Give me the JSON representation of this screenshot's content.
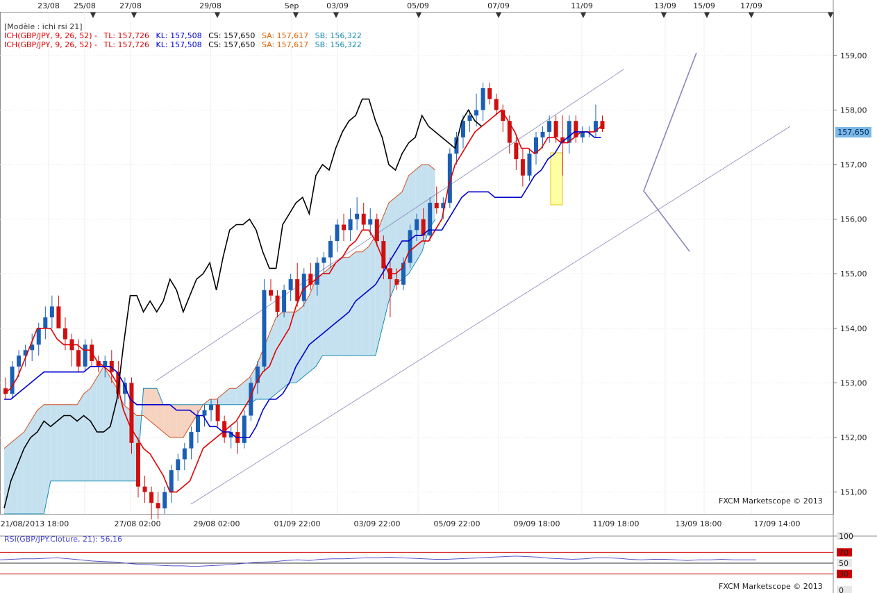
{
  "legend": {
    "model": "[Modèle : ichi rsi 21]",
    "lines": [
      {
        "ich": "ICH(GBP/JPY, 9, 26, 52) -",
        "tl": "TL: 157,726",
        "kl": "KL: 157,508",
        "cs": "CS: 157,650",
        "sa": "SA: 157,617",
        "sb": "SB: 156,322"
      },
      {
        "ich": "ICH(GBP/JPY, 9, 26, 52) -",
        "tl": "TL: 157,726",
        "kl": "KL: 157,508",
        "cs": "CS: 157,650",
        "sa": "SA: 157,617",
        "sb": "SB: 156,322"
      }
    ]
  },
  "credit": "FXCM Marketscope © 2013",
  "price_badge": "157,650",
  "rsi_label": "RSI(GBP/JPY.Cloture, 21): 56,16",
  "colors": {
    "bull": "#1a5fb4",
    "bear": "#d01010",
    "tenkan": "#e00000",
    "kijun": "#0000cc",
    "chikou": "#000000",
    "cloud_bull": "#c5e1f0",
    "cloud_bear": "#f6d2c0",
    "span_a": "#d05020",
    "span_b": "#1a8ab0",
    "rsi": "#5555cc"
  },
  "chart_data": {
    "type": "candlestick",
    "instrument": "GBP/JPY",
    "y_ticks": [
      "159,00",
      "158,00",
      "157,00",
      "156,00",
      "155,00",
      "154,00",
      "153,00",
      "152,00",
      "151,00"
    ],
    "ylim": [
      150.6,
      159.8
    ],
    "top_date_labels": [
      "23/08",
      "25/08",
      "27/08",
      "29/08",
      "Sep",
      "03/09",
      "05/09",
      "07/09",
      "11/09",
      "13/09",
      "15/09",
      "17/09"
    ],
    "bottom_date_labels": [
      "21/08/2013 18:00",
      "27/08 02:00",
      "29/08 02:00",
      "01/09 22:00",
      "03/09 22:00",
      "05/09 22:00",
      "09/09 18:00",
      "11/09 18:00",
      "13/09 18:00",
      "17/09 14:00"
    ],
    "candles": [
      [
        152.9,
        153.1,
        152.7,
        152.8
      ],
      [
        152.8,
        153.4,
        152.7,
        153.3
      ],
      [
        153.3,
        153.6,
        153.1,
        153.5
      ],
      [
        153.5,
        153.7,
        153.3,
        153.6
      ],
      [
        153.6,
        153.9,
        153.4,
        153.7
      ],
      [
        153.7,
        154.1,
        153.5,
        154.0
      ],
      [
        154.0,
        154.4,
        153.8,
        154.2
      ],
      [
        154.2,
        154.6,
        154.0,
        154.4
      ],
      [
        154.4,
        154.6,
        154.0,
        154.0
      ],
      [
        154.0,
        154.2,
        153.6,
        153.8
      ],
      [
        153.8,
        153.9,
        153.3,
        153.6
      ],
      [
        153.6,
        153.8,
        153.2,
        153.3
      ],
      [
        153.3,
        153.8,
        153.2,
        153.7
      ],
      [
        153.7,
        153.8,
        153.3,
        153.4
      ],
      [
        153.4,
        153.5,
        153.2,
        153.3
      ],
      [
        153.3,
        153.5,
        153.1,
        153.4
      ],
      [
        153.4,
        153.6,
        153.0,
        153.2
      ],
      [
        153.2,
        153.4,
        152.7,
        152.8
      ],
      [
        152.8,
        153.1,
        152.6,
        153.0
      ],
      [
        153.0,
        153.1,
        151.7,
        151.9
      ],
      [
        151.9,
        152.0,
        150.9,
        151.1
      ],
      [
        151.1,
        151.3,
        150.8,
        151.0
      ],
      [
        151.0,
        151.1,
        150.5,
        150.8
      ],
      [
        150.8,
        151.0,
        150.5,
        150.7
      ],
      [
        150.7,
        151.1,
        150.6,
        151.0
      ],
      [
        151.0,
        151.5,
        150.8,
        151.4
      ],
      [
        151.4,
        151.7,
        151.2,
        151.6
      ],
      [
        151.6,
        151.9,
        151.4,
        151.8
      ],
      [
        151.8,
        152.2,
        151.6,
        152.1
      ],
      [
        152.1,
        152.5,
        151.9,
        152.4
      ],
      [
        152.4,
        152.6,
        152.2,
        152.5
      ],
      [
        152.5,
        152.7,
        152.3,
        152.6
      ],
      [
        152.6,
        152.7,
        152.2,
        152.3
      ],
      [
        152.3,
        152.4,
        151.9,
        152.0
      ],
      [
        152.0,
        152.2,
        151.8,
        152.1
      ],
      [
        152.1,
        152.3,
        151.7,
        151.9
      ],
      [
        151.9,
        152.5,
        151.8,
        152.4
      ],
      [
        152.4,
        153.1,
        152.3,
        153.0
      ],
      [
        153.0,
        153.4,
        152.8,
        153.3
      ],
      [
        153.3,
        154.9,
        153.2,
        154.7
      ],
      [
        154.7,
        154.9,
        154.5,
        154.6
      ],
      [
        154.6,
        154.7,
        154.2,
        154.3
      ],
      [
        154.3,
        154.8,
        154.2,
        154.7
      ],
      [
        154.7,
        155.0,
        154.5,
        154.9
      ],
      [
        154.9,
        155.2,
        154.4,
        154.5
      ],
      [
        154.5,
        155.1,
        154.4,
        155.0
      ],
      [
        155.0,
        155.2,
        154.7,
        154.8
      ],
      [
        154.8,
        155.3,
        154.6,
        155.2
      ],
      [
        155.2,
        155.4,
        155.0,
        155.3
      ],
      [
        155.3,
        155.7,
        155.1,
        155.6
      ],
      [
        155.6,
        156.0,
        155.4,
        155.9
      ],
      [
        155.9,
        156.1,
        155.6,
        155.8
      ],
      [
        155.8,
        156.2,
        155.6,
        156.0
      ],
      [
        156.0,
        156.4,
        155.8,
        156.1
      ],
      [
        156.1,
        156.3,
        155.8,
        155.9
      ],
      [
        155.9,
        156.2,
        155.7,
        156.0
      ],
      [
        156.0,
        156.1,
        155.5,
        155.6
      ],
      [
        155.6,
        155.7,
        154.9,
        155.1
      ],
      [
        155.1,
        155.3,
        154.2,
        154.9
      ],
      [
        154.9,
        155.1,
        154.7,
        154.8
      ],
      [
        154.8,
        155.3,
        154.7,
        155.2
      ],
      [
        155.2,
        155.9,
        155.1,
        155.8
      ],
      [
        155.8,
        156.1,
        155.6,
        156.0
      ],
      [
        156.0,
        156.2,
        155.6,
        155.7
      ],
      [
        155.7,
        156.4,
        155.6,
        156.3
      ],
      [
        156.3,
        156.6,
        156.1,
        156.2
      ],
      [
        156.2,
        156.4,
        156.0,
        156.3
      ],
      [
        156.3,
        157.3,
        156.2,
        157.2
      ],
      [
        157.2,
        157.6,
        157.0,
        157.5
      ],
      [
        157.5,
        157.9,
        157.3,
        157.8
      ],
      [
        157.8,
        158.0,
        157.6,
        157.9
      ],
      [
        157.9,
        158.3,
        157.7,
        158.0
      ],
      [
        158.0,
        158.5,
        157.8,
        158.4
      ],
      [
        158.4,
        158.5,
        158.1,
        158.2
      ],
      [
        158.2,
        158.3,
        157.9,
        158.0
      ],
      [
        158.0,
        158.1,
        157.6,
        157.8
      ],
      [
        157.8,
        157.9,
        157.2,
        157.4
      ],
      [
        157.4,
        157.5,
        156.9,
        157.1
      ],
      [
        157.1,
        157.3,
        156.6,
        156.8
      ],
      [
        156.8,
        157.3,
        156.7,
        157.2
      ],
      [
        157.2,
        157.6,
        157.0,
        157.5
      ],
      [
        157.5,
        157.7,
        157.3,
        157.6
      ],
      [
        157.6,
        157.9,
        157.4,
        157.8
      ],
      [
        157.8,
        157.9,
        157.4,
        157.5
      ],
      [
        157.5,
        157.9,
        156.8,
        157.4
      ],
      [
        157.4,
        157.9,
        157.2,
        157.8
      ],
      [
        157.8,
        157.9,
        157.4,
        157.5
      ],
      [
        157.5,
        157.7,
        157.4,
        157.6
      ],
      [
        157.6,
        157.7,
        157.5,
        157.6
      ],
      [
        157.6,
        158.1,
        157.5,
        157.8
      ],
      [
        157.8,
        157.9,
        157.6,
        157.65
      ]
    ],
    "tenkan": [
      152.8,
      152.9,
      153.1,
      153.4,
      153.7,
      154.0,
      154.0,
      154.0,
      153.8,
      153.7,
      153.7,
      153.7,
      153.6,
      153.6,
      153.4,
      153.3,
      153.2,
      153.0,
      152.5,
      152.2,
      152.0,
      151.8,
      151.7,
      151.5,
      151.3,
      151.0,
      151.0,
      151.1,
      151.2,
      151.5,
      151.8,
      151.9,
      152.0,
      152.1,
      152.2,
      152.3,
      152.5,
      152.7,
      153.0,
      153.2,
      153.3,
      153.6,
      153.8,
      154.0,
      154.4,
      154.7,
      154.8,
      154.9,
      155.0,
      155.0,
      155.2,
      155.3,
      155.5,
      155.6,
      155.8,
      155.8,
      155.6,
      155.3,
      155.0,
      155.0,
      155.1,
      155.4,
      155.5,
      155.6,
      155.6,
      155.8,
      156.0,
      156.6,
      157.0,
      157.2,
      157.4,
      157.6,
      157.7,
      157.8,
      157.9,
      158.0,
      157.8,
      157.6,
      157.3,
      157.3,
      157.2,
      157.3,
      157.5,
      157.5,
      157.4,
      157.4,
      157.5,
      157.6,
      157.6,
      157.6,
      157.7
    ],
    "kijun": [
      152.7,
      152.7,
      152.8,
      152.9,
      153.0,
      153.1,
      153.2,
      153.2,
      153.2,
      153.2,
      153.2,
      153.2,
      153.2,
      153.3,
      153.3,
      153.3,
      153.3,
      153.2,
      153.0,
      152.7,
      152.6,
      152.6,
      152.6,
      152.6,
      152.6,
      152.6,
      152.5,
      152.5,
      152.5,
      152.4,
      152.4,
      152.2,
      152.2,
      152.1,
      152.1,
      152.0,
      152.0,
      152.0,
      152.2,
      152.5,
      152.7,
      152.7,
      152.8,
      153.0,
      153.3,
      153.5,
      153.7,
      153.8,
      153.9,
      154.0,
      154.1,
      154.2,
      154.3,
      154.5,
      154.6,
      154.7,
      154.8,
      155.0,
      155.2,
      155.4,
      155.6,
      155.6,
      155.7,
      155.7,
      155.8,
      155.8,
      155.8,
      156.0,
      156.2,
      156.4,
      156.5,
      156.5,
      156.5,
      156.5,
      156.4,
      156.4,
      156.4,
      156.4,
      156.4,
      156.6,
      156.8,
      156.9,
      157.1,
      157.2,
      157.4,
      157.5,
      157.6,
      157.6,
      157.6,
      157.5,
      157.5
    ],
    "chikou": [
      150.7,
      151.2,
      151.5,
      151.8,
      152.0,
      152.1,
      152.3,
      152.2,
      152.3,
      152.4,
      152.4,
      152.3,
      152.4,
      152.3,
      152.1,
      152.1,
      152.2,
      152.7,
      153.7,
      154.6,
      154.6,
      154.3,
      154.5,
      154.3,
      154.5,
      154.9,
      154.7,
      154.3,
      154.6,
      154.9,
      155.0,
      155.2,
      154.7,
      155.3,
      155.8,
      155.9,
      155.9,
      156.0,
      155.8,
      155.4,
      155.1,
      155.1,
      155.9,
      156.1,
      156.3,
      156.4,
      156.1,
      156.8,
      157.0,
      156.9,
      157.3,
      157.6,
      157.8,
      157.9,
      158.2,
      158.2,
      157.8,
      157.5,
      157.0,
      156.9,
      157.2,
      157.4,
      157.5,
      157.9,
      157.7,
      157.6,
      157.5,
      157.4,
      157.3,
      157.8,
      158.0,
      157.8,
      157.7
    ],
    "span_a": [
      151.8,
      151.9,
      152.0,
      152.1,
      152.3,
      152.5,
      152.6,
      152.6,
      152.6,
      152.6,
      152.6,
      152.6,
      152.8,
      152.9,
      153.1,
      153.3,
      153.1,
      152.9,
      152.6,
      152.5,
      152.4,
      152.4,
      152.3,
      152.2,
      152.1,
      152.0,
      152.0,
      152.0,
      152.2,
      152.4,
      152.6,
      152.7,
      152.7,
      152.8,
      152.9,
      152.9,
      153.0,
      153.1,
      153.3,
      153.6,
      153.9,
      154.2,
      154.3,
      154.3,
      154.3,
      154.4,
      154.6,
      154.9,
      155.0,
      155.1,
      155.2,
      155.3,
      155.3,
      155.4,
      155.4,
      155.5,
      155.7,
      156.0,
      156.3,
      156.4,
      156.5,
      156.8,
      156.9,
      157.0,
      157.0,
      156.9,
      156.9
    ],
    "span_b": [
      150.6,
      150.6,
      150.6,
      150.6,
      150.6,
      150.6,
      150.6,
      151.2,
      151.2,
      151.2,
      151.2,
      151.2,
      151.2,
      151.2,
      151.2,
      151.2,
      151.2,
      151.2,
      151.2,
      151.2,
      151.2,
      152.9,
      152.9,
      152.9,
      152.6,
      152.6,
      152.6,
      152.6,
      152.6,
      152.6,
      152.6,
      152.6,
      152.6,
      152.6,
      152.6,
      152.6,
      152.6,
      152.6,
      152.7,
      152.7,
      152.7,
      152.8,
      152.9,
      153.0,
      153.0,
      153.1,
      153.2,
      153.3,
      153.5,
      153.5,
      153.5,
      153.5,
      153.5,
      153.5,
      153.5,
      153.5,
      153.5,
      154.0,
      154.5,
      154.8,
      154.9,
      155.0,
      155.2,
      155.4,
      155.8,
      156.0
    ],
    "rsi": [
      56,
      57,
      58,
      58,
      59,
      60,
      58,
      56,
      54,
      53,
      52,
      50,
      48,
      47,
      46,
      45,
      45,
      44,
      45,
      46,
      47,
      49,
      51,
      52,
      53,
      55,
      56,
      55,
      57,
      58,
      58,
      59,
      60,
      60,
      61,
      60,
      59,
      58,
      57,
      57,
      58,
      59,
      60,
      61,
      62,
      63,
      62,
      61,
      59,
      58,
      57,
      58,
      60,
      60,
      59,
      57,
      56,
      57,
      57,
      56,
      55,
      56,
      56,
      57,
      56,
      56,
      56
    ],
    "rsi_ticks": [
      "100",
      "70",
      "50",
      "30",
      "0"
    ]
  }
}
